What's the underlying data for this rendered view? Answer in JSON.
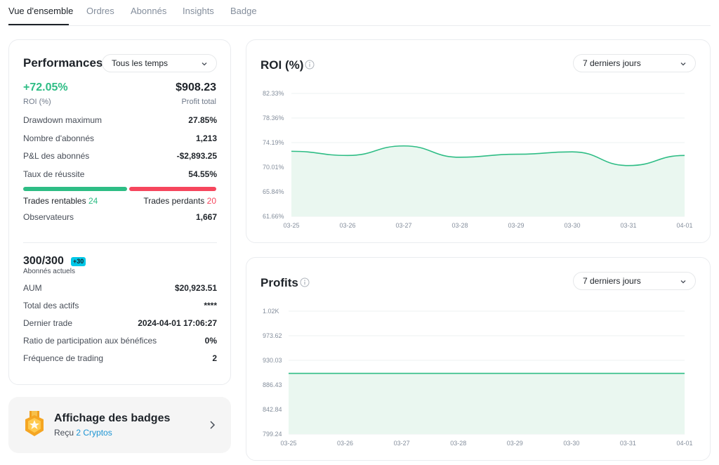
{
  "tabs": [
    {
      "label": "Vue d'ensemble",
      "active": true
    },
    {
      "label": "Ordres"
    },
    {
      "label": "Abonnés"
    },
    {
      "label": "Insights"
    },
    {
      "label": "Badge"
    }
  ],
  "performance": {
    "title": "Performances",
    "period": "Tous les temps",
    "roi_value": "+72.05%",
    "roi_label": "ROI (%)",
    "profit_value": "$908.23",
    "profit_label": "Profit total",
    "stats": [
      {
        "label": "Drawdown maximum",
        "value": "27.85%"
      },
      {
        "label": "Nombre d'abonnés",
        "value": "1,213"
      },
      {
        "label": "P&L des abonnés",
        "value": "-$2,893.25"
      },
      {
        "label": "Taux de réussite",
        "value": "54.55%"
      }
    ],
    "win_ratio": 0.5455,
    "trades_win_label": "Trades rentables",
    "trades_win_count": "24",
    "trades_loss_label": "Trades perdants",
    "trades_loss_count": "20",
    "observers_label": "Observateurs",
    "observers_value": "1,667"
  },
  "subscribers": {
    "count": "300/300",
    "badge": "+30",
    "label": "Abonnés actuels",
    "stats": [
      {
        "label": "AUM",
        "value": "$20,923.51"
      },
      {
        "label": "Total des actifs",
        "value": "****"
      },
      {
        "label": "Dernier trade",
        "value": "2024-04-01 17:06:27"
      },
      {
        "label": "Ratio de participation aux bénéfices",
        "value": "0%"
      },
      {
        "label": "Fréquence de trading",
        "value": "2"
      }
    ]
  },
  "badges": {
    "title": "Affichage des badges",
    "received_prefix": "Reçu",
    "received_link": "2 Cryptos"
  },
  "colors": {
    "green": "#2ebd85",
    "red": "#f6465d",
    "area_fill": "#eaf7f0"
  },
  "roi_chart": {
    "title": "ROI (%)",
    "period": "7 derniers jours"
  },
  "profit_chart": {
    "title": "Profits",
    "period": "7 derniers jours"
  },
  "chart_data": [
    {
      "type": "area",
      "title": "ROI (%)",
      "x": [
        "03-25",
        "03-26",
        "03-27",
        "03-28",
        "03-29",
        "03-30",
        "03-31",
        "04-01"
      ],
      "y_ticks": [
        "82.33%",
        "78.36%",
        "74.19%",
        "70.01%",
        "65.84%",
        "61.66%"
      ],
      "ylim": [
        61.66,
        82.33
      ],
      "values": [
        72.6,
        71.9,
        73.5,
        71.6,
        72.1,
        72.5,
        70.2,
        71.9
      ],
      "grid": true
    },
    {
      "type": "area",
      "title": "Profits",
      "x": [
        "03-25",
        "03-26",
        "03-27",
        "03-28",
        "03-29",
        "03-30",
        "03-31",
        "04-01"
      ],
      "y_ticks": [
        "1.02K",
        "973.62",
        "930.03",
        "886.43",
        "842.84",
        "799.24"
      ],
      "ylim": [
        799.24,
        1020
      ],
      "values": [
        908.23,
        908.23,
        908.23,
        908.23,
        908.23,
        908.23,
        908.23,
        908.23
      ],
      "grid": true
    }
  ]
}
